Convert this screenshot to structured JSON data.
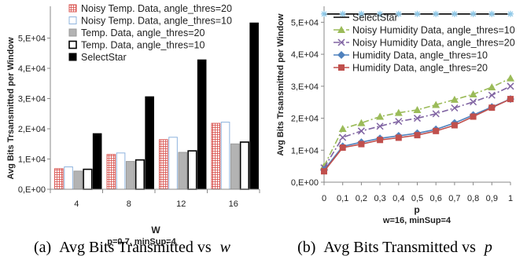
{
  "chart_data": [
    {
      "type": "bar",
      "ylabel": "Avg Bits Trsansmitted per Window",
      "xlabel": "W",
      "subtitle": "p=0.7, minSup=4",
      "caption": {
        "label": "(a)",
        "text": "Avg Bits Transmitted vs",
        "var": "w"
      },
      "categories": [
        "4",
        "8",
        "12",
        "16"
      ],
      "ylim": [
        0,
        60000
      ],
      "yticks": [
        0,
        10000,
        20000,
        30000,
        40000,
        50000
      ],
      "yticklabels": [
        "0,E+00",
        "1,E+04",
        "2,E+04",
        "3,E+04",
        "4,E+04",
        "5,E+04"
      ],
      "grid": false,
      "legend": "top-left",
      "series": [
        {
          "name": "Noisy Temp. Data, angle_thres=20",
          "style": "checker-red",
          "values": [
            6800,
            11500,
            16400,
            21800
          ]
        },
        {
          "name": "Noisy Temp. Data, angle_thres=10",
          "style": "light-blue",
          "values": [
            7400,
            12000,
            17200,
            22200
          ]
        },
        {
          "name": "Temp. Data, angle_thres=20",
          "style": "gray",
          "values": [
            6000,
            9200,
            12200,
            15000
          ]
        },
        {
          "name": "Temp. Data, angle_thres=10",
          "style": "white-outline",
          "values": [
            6600,
            9700,
            12700,
            15600
          ]
        },
        {
          "name": "SelectStar",
          "style": "black",
          "values": [
            18400,
            30600,
            42800,
            55000
          ]
        }
      ]
    },
    {
      "type": "line",
      "ylabel": "Avg Bits Trsansmitted per Window",
      "xlabel": "p",
      "subtitle": "w=16, minSup=4",
      "caption": {
        "label": "(b)",
        "text": "Avg Bits Transmitted vs",
        "var": "p"
      },
      "x": [
        0,
        0.1,
        0.2,
        0.3,
        0.4,
        0.5,
        0.6,
        0.7,
        0.8,
        0.9,
        1
      ],
      "xticklabels": [
        "0",
        "0,1",
        "0,2",
        "0,3",
        "0,4",
        "0,5",
        "0,6",
        "0,7",
        "0,8",
        "0,9",
        "1"
      ],
      "ylim": [
        0,
        55000
      ],
      "yticks": [
        0,
        10000,
        20000,
        30000,
        40000,
        50000
      ],
      "yticklabels": [
        "0,E+00",
        "1,E+04",
        "2,E+04",
        "3,E+04",
        "4,E+04",
        "5,E+04"
      ],
      "grid": false,
      "legend": "top",
      "series": [
        {
          "name": "SelectStar",
          "color": "#000000",
          "marker": "star",
          "markerColor": "#8ec8e8",
          "values": [
            52600,
            52600,
            52600,
            52600,
            52600,
            52600,
            52600,
            52600,
            52600,
            52600,
            52600
          ]
        },
        {
          "name": "Noisy Humidity Data, angle_thres=10",
          "color": "#9bbb59",
          "marker": "triangle",
          "dash": "8,3,2,3",
          "values": [
            5000,
            16700,
            18500,
            20500,
            21700,
            22600,
            24200,
            25800,
            27500,
            29700,
            32500
          ]
        },
        {
          "name": "Noisy Humidity Data, angle_thres=20",
          "color": "#8064a2",
          "marker": "x",
          "dash": "8,3,2,3",
          "values": [
            4500,
            14000,
            16000,
            17500,
            19000,
            20000,
            21400,
            23200,
            25100,
            27200,
            30000
          ]
        },
        {
          "name": "Humidity Data, angle_thres=10",
          "color": "#4f81bd",
          "marker": "diamond",
          "values": [
            3800,
            11200,
            12500,
            13700,
            14500,
            15300,
            16500,
            18500,
            21000,
            23500,
            26000
          ]
        },
        {
          "name": "Humidity Data, angle_thres=20",
          "color": "#c0504d",
          "marker": "square",
          "values": [
            3400,
            10800,
            11900,
            13200,
            13900,
            14700,
            16000,
            17800,
            20500,
            23300,
            26000
          ]
        }
      ]
    }
  ]
}
